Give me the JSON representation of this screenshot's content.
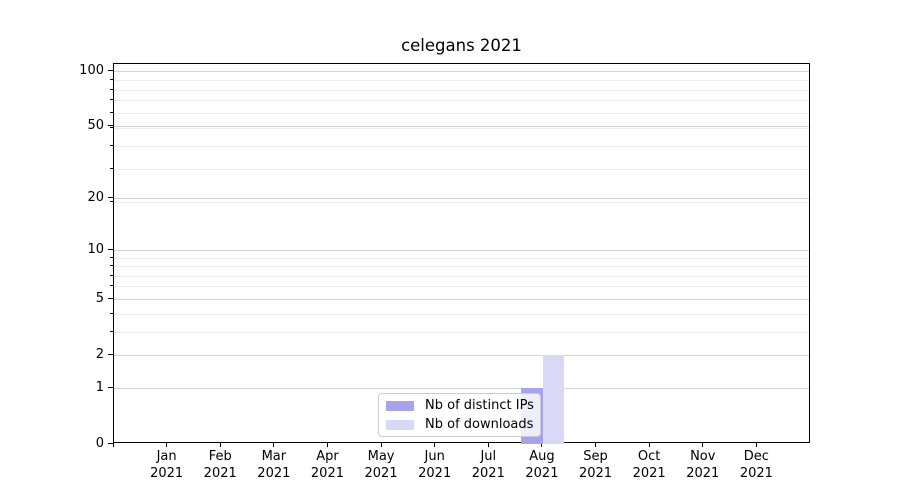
{
  "chart_data": {
    "type": "bar",
    "title": "celegans 2021",
    "categories": [
      "Jan",
      "Feb",
      "Mar",
      "Apr",
      "May",
      "Jun",
      "Jul",
      "Aug",
      "Sep",
      "Oct",
      "Nov",
      "Dec"
    ],
    "category_year_label": "2021",
    "series": [
      {
        "name": "Nb of distinct IPs",
        "color": "#a4a4ec",
        "values": [
          0,
          0,
          0,
          0,
          0,
          0,
          0,
          1,
          0,
          0,
          0,
          0
        ]
      },
      {
        "name": "Nb of downloads",
        "color": "#d9d9f7",
        "values": [
          0,
          0,
          0,
          0,
          0,
          0,
          0,
          2,
          0,
          0,
          0,
          0
        ]
      }
    ],
    "xlabel": "",
    "ylabel": "",
    "y_scale": "log10(1+y)",
    "y_ticks": [
      0,
      1,
      2,
      5,
      10,
      20,
      50,
      100
    ],
    "y_minor_ticks": [
      3,
      4,
      6,
      7,
      8,
      9,
      19,
      29,
      39,
      49,
      59,
      69,
      79,
      89
    ],
    "ylim": [
      0,
      109.6
    ],
    "grid": "horizontal",
    "legend_position": "lower-center-inside"
  },
  "colors": {
    "background": "#ffffff",
    "spine": "#000000",
    "text": "#000000",
    "grid_major": "#d3d3d3",
    "grid_minor": "#ececec",
    "legend_border": "#cccccc"
  }
}
